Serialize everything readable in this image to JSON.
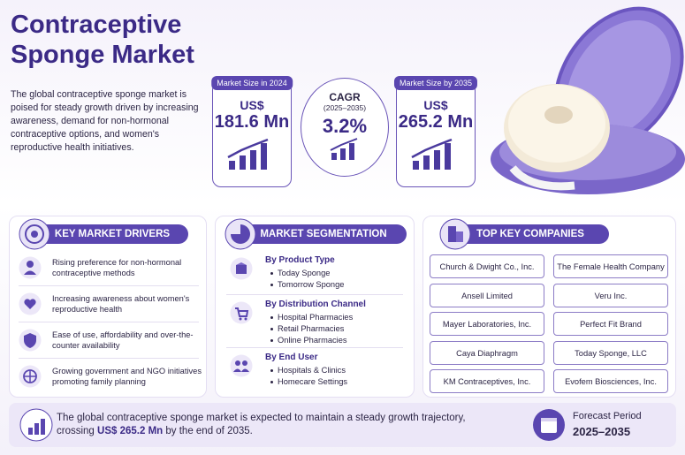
{
  "header": {
    "title_line1": "Contraceptive",
    "title_line2": "Sponge Market",
    "description": "The global contraceptive sponge market is poised for steady growth driven by increasing awareness, demand for non-hormonal contraceptive options, and women's reproductive health initiatives."
  },
  "stats": {
    "market_2024": {
      "label": "Market Size in 2024",
      "currency": "US$",
      "value": "181.6 Mn"
    },
    "cagr": {
      "label": "CAGR",
      "period": "(2025–2035)",
      "value": "3.2%"
    },
    "market_2035": {
      "label": "Market Size by 2035",
      "currency": "US$",
      "value": "265.2 Mn"
    }
  },
  "drivers": {
    "title": "KEY MARKET DRIVERS",
    "items": [
      "Rising preference for non-hormonal contraceptive methods",
      "Increasing awareness about women's reproductive health",
      "Ease of use, affordability and over-the-counter availability",
      "Growing government and NGO initiatives promoting family planning"
    ]
  },
  "segmentation": {
    "title": "MARKET SEGMENTATION",
    "groups": [
      {
        "title": "By Product Type",
        "items": [
          "Today Sponge",
          "Tomorrow Sponge"
        ]
      },
      {
        "title": "By Distribution Channel",
        "items": [
          "Hospital Pharmacies",
          "Retail Pharmacies",
          "Online Pharmacies"
        ]
      },
      {
        "title": "By End User",
        "items": [
          "Hospitals & Clinics",
          "Homecare Settings"
        ]
      }
    ]
  },
  "companies": {
    "title": "TOP KEY COMPANIES",
    "items": [
      "Church & Dwight Co., Inc.",
      "The Female Health Company",
      "Ansell Limited",
      "Veru Inc.",
      "Mayer Laboratories, Inc.",
      "Perfect Fit Brand",
      "Caya Diaphragm",
      "Today Sponge, LLC",
      "KM Contraceptives, Inc.",
      "Evofem Biosciences, Inc."
    ]
  },
  "footer": {
    "text_before": "The global contraceptive sponge market is expected to maintain a steady growth trajectory, crossing ",
    "highlight": "US$ 265.2 Mn",
    "text_after": " by the end of 2035.",
    "forecast_label": "Forecast Period",
    "forecast_value": "2025–2035"
  }
}
